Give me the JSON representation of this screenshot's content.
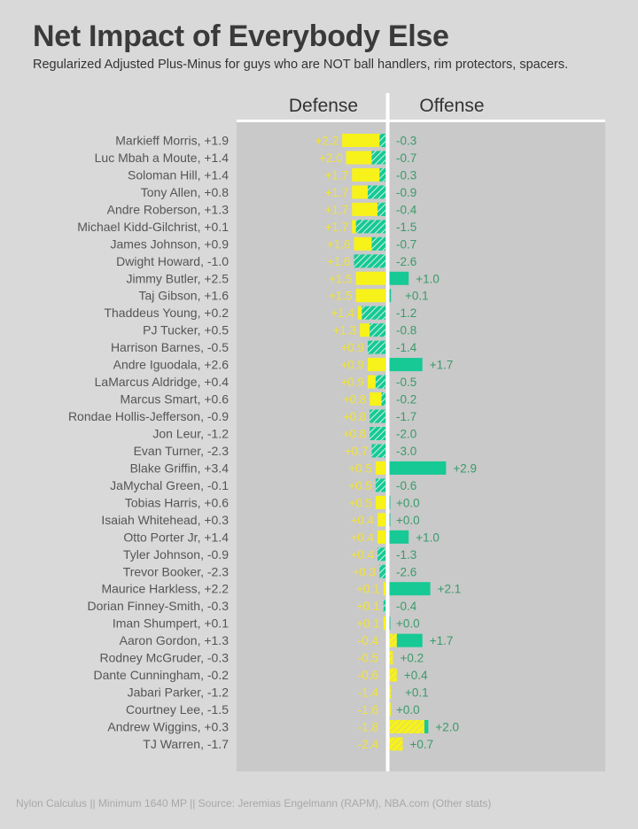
{
  "title": "Net Impact of Everybody Else",
  "subtitle": "Regularized Adjusted Plus-Minus for guys who are NOT ball handlers, rim protectors, spacers.",
  "footer": "Nylon Calculus || Minimum 1640 MP || Source: Jeremias Engelmann (RAPM), NBA.com (Other stats)",
  "colors": {
    "background": "#d9d9d9",
    "panel": "#c9c9c9",
    "defense": "#f7f21a",
    "offense": "#16c995",
    "divider": "#ffffff"
  },
  "chart_data": {
    "type": "bar",
    "orientation": "horizontal-diverging",
    "headers": {
      "defense": "Defense",
      "offense": "Offense"
    },
    "categories": [
      "Markieff Morris",
      "Luc Mbah a Moute",
      "Soloman Hill",
      "Tony Allen",
      "Andre Roberson",
      "Michael Kidd-Gilchrist",
      "James Johnson",
      "Dwight Howard",
      "Jimmy Butler",
      "Taj Gibson",
      "Thaddeus Young",
      "PJ Tucker",
      "Harrison Barnes",
      "Andre Iguodala",
      "LaMarcus Aldridge",
      "Marcus Smart",
      "Rondae Hollis-Jefferson",
      "Jon Leur",
      "Evan Turner",
      "Blake Griffin",
      "JaMychal Green",
      "Tobias Harris",
      "Isaiah Whitehead",
      "Otto Porter Jr",
      "Tyler Johnson",
      "Trevor Booker",
      "Maurice Harkless",
      "Dorian Finney-Smith",
      "Iman Shumpert",
      "Aaron Gordon",
      "Rodney McGruder",
      "Dante Cunningham",
      "Jabari Parker",
      "Courtney Lee",
      "Andrew Wiggins",
      "TJ Warren"
    ],
    "net_labels": [
      "+1.9",
      "+1.4",
      "+1.4",
      "+0.8",
      "+1.3",
      "+0.1",
      "+0.9",
      "-1.0",
      "+2.5",
      "+1.6",
      "+0.2",
      "+0.5",
      "-0.5",
      "+2.6",
      "+0.4",
      "+0.6",
      "-0.9",
      "-1.2",
      "-2.3",
      "+3.4",
      "-0.1",
      "+0.6",
      "+0.3",
      "+1.4",
      "-0.9",
      "-2.3",
      "+2.2",
      "-0.3",
      "+0.1",
      "+1.3",
      "-0.3",
      "-0.2",
      "-1.2",
      "-1.5",
      "+0.3",
      "-1.7"
    ],
    "series": [
      {
        "name": "Defense",
        "values": [
          2.2,
          2.0,
          1.7,
          1.7,
          1.7,
          1.7,
          1.6,
          1.6,
          1.5,
          1.5,
          1.4,
          1.3,
          0.9,
          0.9,
          0.9,
          0.8,
          0.8,
          0.8,
          0.7,
          0.5,
          0.5,
          0.5,
          0.4,
          0.4,
          0.4,
          0.3,
          0.1,
          0.1,
          0.1,
          -0.4,
          -0.5,
          -0.6,
          -1.4,
          -1.6,
          -1.8,
          -2.4
        ],
        "labels": [
          "+2.2",
          "+2.0",
          "+1.7",
          "+1.7",
          "+1.7",
          "+1.7",
          "+1.6",
          "+1.6",
          "+1.5",
          "+1.5",
          "+1.4",
          "+1.3",
          "+0.9",
          "+0.9",
          "+0.9",
          "+0.8",
          "+0.8",
          "+0.8",
          "+0.7",
          "+0.5",
          "+0.5",
          "+0.5",
          "+0.4",
          "+0.4",
          "+0.4",
          "+0.3",
          "+0.1",
          "+0.1",
          "+0.1",
          "-0.4",
          "-0.5",
          "-0.6",
          "-1.4",
          "-1.6",
          "-1.8",
          "-2.4"
        ]
      },
      {
        "name": "Offense",
        "values": [
          -0.3,
          -0.7,
          -0.3,
          -0.9,
          -0.4,
          -1.5,
          -0.7,
          -2.6,
          1.0,
          0.1,
          -1.2,
          -0.8,
          -1.4,
          1.7,
          -0.5,
          -0.2,
          -1.7,
          -2.0,
          -3.0,
          2.9,
          -0.6,
          0.0,
          0.0,
          1.0,
          -1.3,
          -2.6,
          2.1,
          -0.4,
          0.0,
          1.7,
          0.2,
          0.4,
          0.1,
          0.0,
          2.0,
          0.7
        ],
        "labels": [
          "-0.3",
          "-0.7",
          "-0.3",
          "-0.9",
          "-0.4",
          "-1.5",
          "-0.7",
          "-2.6",
          "+1.0",
          "+0.1",
          "-1.2",
          "-0.8",
          "-1.4",
          "+1.7",
          "-0.5",
          "-0.2",
          "-1.7",
          "-2.0",
          "-3.0",
          "+2.9",
          "-0.6",
          "+0.0",
          "+0.0",
          "+1.0",
          "-1.3",
          "-2.6",
          "+2.1",
          "-0.4",
          "+0.0",
          "+1.7",
          "+0.2",
          "+0.4",
          "+0.1",
          "+0.0",
          "+2.0",
          "+0.7"
        ]
      }
    ]
  }
}
